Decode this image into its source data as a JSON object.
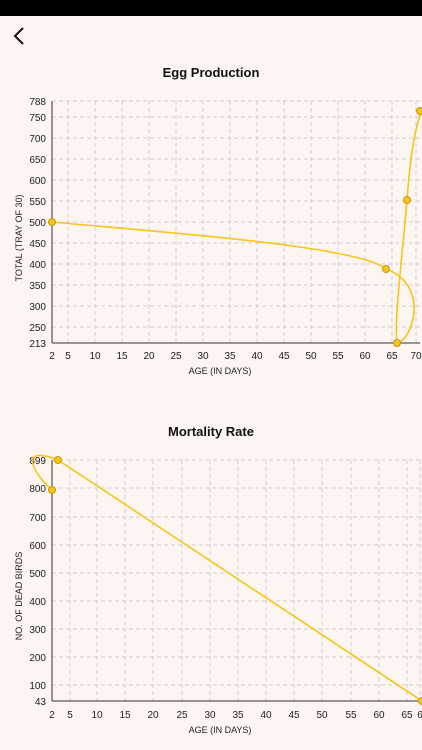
{
  "header": {
    "back_icon": "arrow-left-icon"
  },
  "colors": {
    "line": "#f5c518",
    "point": "#f5c518",
    "point_stroke": "#c79a10",
    "grid": "#cfcfcf",
    "background": "#fdf5f2"
  },
  "chart_data": [
    {
      "type": "line",
      "title": "Egg Production",
      "xlabel": "AGE (IN DAYS)",
      "ylabel": "TOTAL (TRAY OF 30)",
      "x_ticks": [
        "2",
        "5",
        "10",
        "15",
        "20",
        "25",
        "30",
        "35",
        "40",
        "45",
        "50",
        "55",
        "60",
        "65",
        "70"
      ],
      "y_ticks": [
        "213",
        "250",
        "300",
        "350",
        "400",
        "450",
        "500",
        "550",
        "600",
        "650",
        "700",
        "750",
        "788"
      ],
      "xlim": [
        2,
        70
      ],
      "ylim": [
        213,
        788
      ],
      "grid": true,
      "points": [
        {
          "x": 2,
          "y": 503
        },
        {
          "x": 64,
          "y": 387
        },
        {
          "x": 66,
          "y": 213
        },
        {
          "x": 68,
          "y": 552
        },
        {
          "x": 70,
          "y": 788
        }
      ]
    },
    {
      "type": "line",
      "title": "Mortality Rate",
      "xlabel": "AGE (IN DAYS)",
      "ylabel": "NO. OF DEAD BIRDS",
      "x_ticks": [
        "2",
        "5",
        "10",
        "15",
        "20",
        "25",
        "30",
        "35",
        "40",
        "45",
        "50",
        "55",
        "60",
        "65",
        "6"
      ],
      "y_ticks": [
        "43",
        "100",
        "200",
        "300",
        "400",
        "500",
        "600",
        "700",
        "800",
        "899"
      ],
      "xlim": [
        2,
        69
      ],
      "ylim": [
        43,
        899
      ],
      "grid": true,
      "points": [
        {
          "x": 2,
          "y": 790
        },
        {
          "x": 3,
          "y": 899
        },
        {
          "x": 69,
          "y": 43
        }
      ]
    }
  ]
}
